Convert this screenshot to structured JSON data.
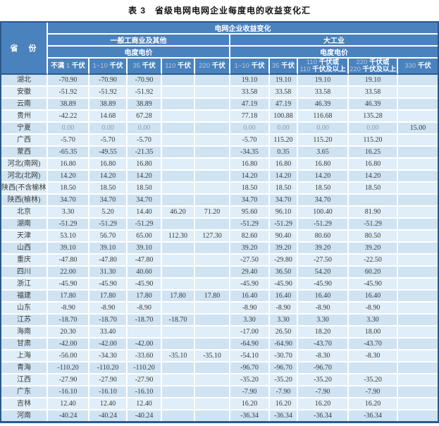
{
  "title": "表 3　省级电网电网企业每度电的收益变化汇",
  "table": {
    "corner_header": "省　份",
    "top_header": "电网企业收益变化",
    "groups": [
      {
        "label": "一般工商业及其他",
        "sub": "电度电价",
        "cols": [
          "不满 1 千伏",
          "1~10 千伏",
          "35 千伏",
          "110 千伏",
          "220 千伏"
        ]
      },
      {
        "label": "大工业",
        "sub": "电度电价",
        "cols": [
          "1~10 千伏",
          "35 千伏",
          "110 千伏或\n110 千伏及以上",
          "220 千伏或\n220 千伏及以上",
          "330 千伏"
        ]
      }
    ],
    "rows": [
      {
        "province": "湖北",
        "values": [
          "-70.90",
          "-70.90",
          "-70.90",
          "",
          "",
          "19.10",
          "19.10",
          "19.10",
          "19.10",
          ""
        ]
      },
      {
        "province": "安徽",
        "values": [
          "-51.92",
          "-51.92",
          "-51.92",
          "",
          "",
          "33.58",
          "33.58",
          "33.58",
          "33.58",
          ""
        ]
      },
      {
        "province": "云南",
        "values": [
          "38.89",
          "38.89",
          "38.89",
          "",
          "",
          "47.19",
          "47.19",
          "46.39",
          "46.39",
          ""
        ]
      },
      {
        "province": "贵州",
        "values": [
          "-42.22",
          "14.68",
          "67.28",
          "",
          "",
          "77.18",
          "100.88",
          "116.68",
          "135.28",
          ""
        ]
      },
      {
        "province": "宁夏",
        "values": [
          "0.00",
          "0.00",
          "0.00",
          "",
          "",
          "0.00",
          "0.00",
          "0.00",
          "0.00",
          "15.00"
        ]
      },
      {
        "province": "广西",
        "values": [
          "-5.70",
          "-5.70",
          "-5.70",
          "",
          "",
          "-5.70",
          "115.20",
          "115.20",
          "115.20",
          ""
        ]
      },
      {
        "province": "蒙西",
        "values": [
          "-65.35",
          "-49.55",
          "-21.35",
          "",
          "",
          "-34.35",
          "0.35",
          "3.65",
          "16.25",
          ""
        ]
      },
      {
        "province": "河北(南网)",
        "values": [
          "16.80",
          "16.80",
          "16.80",
          "",
          "",
          "16.80",
          "16.80",
          "16.80",
          "16.80",
          ""
        ]
      },
      {
        "province": "河北(北网)",
        "values": [
          "14.20",
          "14.20",
          "14.20",
          "",
          "",
          "14.20",
          "14.20",
          "14.20",
          "14.20",
          ""
        ]
      },
      {
        "province": "陕西(不含榆林)",
        "values": [
          "18.50",
          "18.50",
          "18.50",
          "",
          "",
          "18.50",
          "18.50",
          "18.50",
          "18.50",
          ""
        ]
      },
      {
        "province": "陕西(榆林)",
        "values": [
          "34.70",
          "34.70",
          "34.70",
          "",
          "",
          "34.70",
          "34.70",
          "34.70",
          "",
          ""
        ]
      },
      {
        "province": "北京",
        "values": [
          "3.30",
          "5.20",
          "14.40",
          "46.20",
          "71.20",
          "95.60",
          "96.10",
          "100.40",
          "81.90",
          ""
        ]
      },
      {
        "province": "湖南",
        "values": [
          "-51.29",
          "-51.29",
          "-51.29",
          "",
          "",
          "-51.29",
          "-51.29",
          "-51.29",
          "-51.29",
          ""
        ]
      },
      {
        "province": "天津",
        "values": [
          "53.10",
          "56.70",
          "65.00",
          "112.30",
          "127.30",
          "82.60",
          "90.40",
          "80.60",
          "80.50",
          ""
        ]
      },
      {
        "province": "山西",
        "values": [
          "39.10",
          "39.10",
          "39.10",
          "",
          "",
          "39.20",
          "39.20",
          "39.20",
          "39.20",
          ""
        ]
      },
      {
        "province": "重庆",
        "values": [
          "-47.80",
          "-47.80",
          "-47.80",
          "",
          "",
          "-27.50",
          "-29.80",
          "-27.50",
          "-22.50",
          ""
        ]
      },
      {
        "province": "四川",
        "values": [
          "22.00",
          "31.30",
          "40.60",
          "",
          "",
          "29.40",
          "36.50",
          "54.20",
          "60.20",
          ""
        ]
      },
      {
        "province": "浙江",
        "values": [
          "-45.90",
          "-45.90",
          "-45.90",
          "",
          "",
          "-45.90",
          "-45.90",
          "-45.90",
          "-45.90",
          ""
        ]
      },
      {
        "province": "福建",
        "values": [
          "17.80",
          "17.80",
          "17.80",
          "17.80",
          "17.80",
          "16.40",
          "16.40",
          "16.40",
          "16.40",
          ""
        ]
      },
      {
        "province": "山东",
        "values": [
          "-8.90",
          "-8.90",
          "-8.90",
          "",
          "",
          "-8.90",
          "-8.90",
          "-8.90",
          "-8.90",
          ""
        ]
      },
      {
        "province": "江苏",
        "values": [
          "-18.70",
          "-18.70",
          "-18.70",
          "-18.70",
          "",
          "3.30",
          "3.30",
          "3.30",
          "3.30",
          ""
        ]
      },
      {
        "province": "海南",
        "values": [
          "20.30",
          "33.40",
          "",
          "",
          "",
          "-17.00",
          "26.50",
          "18.20",
          "18.00",
          ""
        ]
      },
      {
        "province": "甘肃",
        "values": [
          "-42.00",
          "-42.00",
          "-42.00",
          "",
          "",
          "-64.90",
          "-64.90",
          "-43.70",
          "-43.70",
          ""
        ]
      },
      {
        "province": "上海",
        "values": [
          "-56.00",
          "-34.30",
          "-33.60",
          "-35.10",
          "-35.10",
          "-54.10",
          "-30.70",
          "-8.30",
          "-8.30",
          ""
        ]
      },
      {
        "province": "青海",
        "values": [
          "-110.20",
          "-110.20",
          "-110.20",
          "",
          "",
          "-96.70",
          "-96.70",
          "-96.70",
          "",
          ""
        ]
      },
      {
        "province": "江西",
        "values": [
          "-27.90",
          "-27.90",
          "-27.90",
          "",
          "",
          "-35.20",
          "-35.20",
          "-35.20",
          "-35.20",
          ""
        ]
      },
      {
        "province": "广东",
        "values": [
          "-16.10",
          "-16.10",
          "-16.10",
          "",
          "",
          "-7.90",
          "-7.90",
          "-7.90",
          "-7.90",
          ""
        ]
      },
      {
        "province": "吉林",
        "values": [
          "12.40",
          "12.40",
          "12.40",
          "",
          "",
          "16.20",
          "16.20",
          "16.20",
          "16.20",
          ""
        ]
      },
      {
        "province": "河南",
        "values": [
          "-40.24",
          "-40.24",
          "-40.24",
          "",
          "",
          "-36.34",
          "-36.34",
          "-36.34",
          "-36.34",
          ""
        ]
      }
    ]
  }
}
